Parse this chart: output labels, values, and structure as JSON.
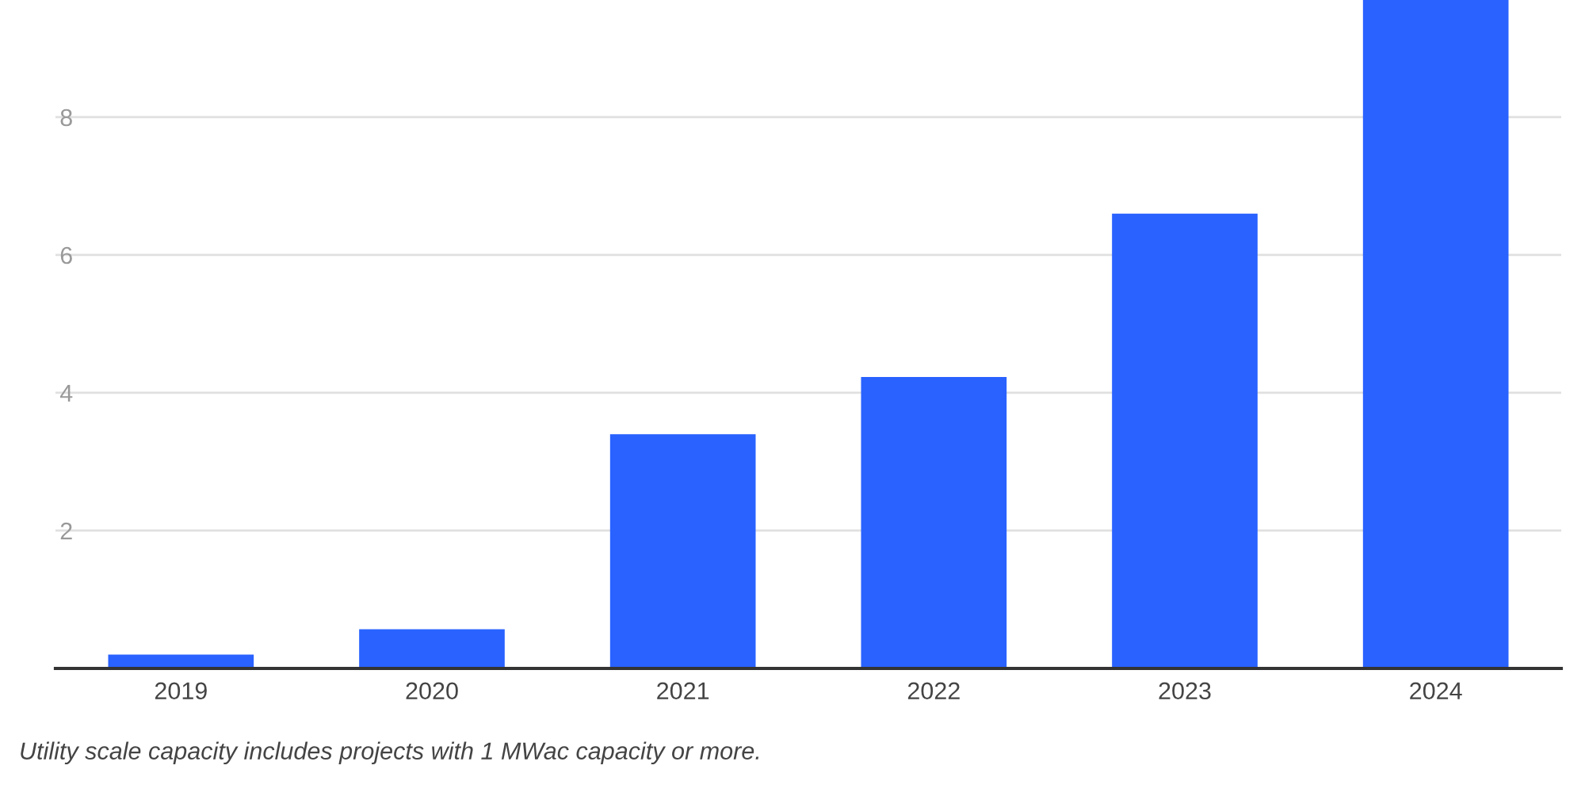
{
  "chart_data": {
    "type": "bar",
    "categories": [
      "2019",
      "2020",
      "2021",
      "2022",
      "2023",
      "2024"
    ],
    "values": [
      0.2,
      0.57,
      3.4,
      4.23,
      6.6,
      9.7
    ],
    "color": "#2962ff",
    "ylim": [
      0,
      9.7
    ],
    "yticks": [
      2,
      4,
      6,
      8
    ],
    "grid": "y",
    "legend": false,
    "annotations": [
      "Utility scale capacity includes projects with 1 MWac capacity or more."
    ]
  }
}
